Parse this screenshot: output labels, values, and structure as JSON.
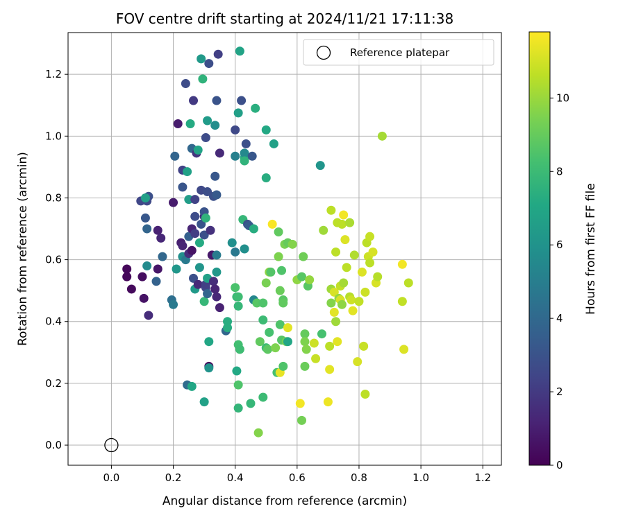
{
  "chart_data": {
    "type": "scatter",
    "title": "FOV centre drift starting at 2024/11/21 17:11:38",
    "xlabel": "Angular distance from reference (arcmin)",
    "ylabel": "Rotation from reference (arcmin)",
    "xlim": [
      -0.14,
      1.26
    ],
    "ylim": [
      -0.065,
      1.335
    ],
    "xticks": [
      0.0,
      0.2,
      0.4,
      0.6,
      0.8,
      1.0,
      1.2
    ],
    "yticks": [
      0.0,
      0.2,
      0.4,
      0.6,
      0.8,
      1.0,
      1.2
    ],
    "xtick_labels": [
      "0.0",
      "0.2",
      "0.4",
      "0.6",
      "0.8",
      "1.0",
      "1.2"
    ],
    "ytick_labels": [
      "0.0",
      "0.2",
      "0.4",
      "0.6",
      "0.8",
      "1.0",
      "1.2"
    ],
    "grid": true,
    "legend": {
      "position": "top-right",
      "entries": [
        "Reference platepar"
      ]
    },
    "reference_point": {
      "x": 0.0,
      "y": 0.0
    },
    "colorbar": {
      "label": "Hours from first FF file",
      "colormap": "viridis",
      "range": [
        0,
        11.8
      ],
      "ticks": [
        0,
        2,
        4,
        6,
        8,
        10
      ],
      "tick_labels": [
        "0",
        "2",
        "4",
        "6",
        "8",
        "10"
      ]
    },
    "points": [
      {
        "x": 0.05,
        "y": 0.57,
        "c": 0.2
      },
      {
        "x": 0.05,
        "y": 0.545,
        "c": 0.2
      },
      {
        "x": 0.065,
        "y": 0.505,
        "c": 0.3
      },
      {
        "x": 0.1,
        "y": 0.545,
        "c": 0.4
      },
      {
        "x": 0.105,
        "y": 0.475,
        "c": 0.6
      },
      {
        "x": 0.12,
        "y": 0.42,
        "c": 1.5
      },
      {
        "x": 0.15,
        "y": 0.57,
        "c": 0.7
      },
      {
        "x": 0.145,
        "y": 0.53,
        "c": 3.7
      },
      {
        "x": 0.165,
        "y": 0.61,
        "c": 3.9
      },
      {
        "x": 0.15,
        "y": 0.695,
        "c": 1.1
      },
      {
        "x": 0.16,
        "y": 0.67,
        "c": 1.3
      },
      {
        "x": 0.115,
        "y": 0.58,
        "c": 5.6
      },
      {
        "x": 0.115,
        "y": 0.7,
        "c": 3.8
      },
      {
        "x": 0.11,
        "y": 0.735,
        "c": 3.2
      },
      {
        "x": 0.095,
        "y": 0.79,
        "c": 2.5
      },
      {
        "x": 0.115,
        "y": 0.79,
        "c": 2.6
      },
      {
        "x": 0.12,
        "y": 0.805,
        "c": 2.9
      },
      {
        "x": 0.11,
        "y": 0.8,
        "c": 6.6
      },
      {
        "x": 0.2,
        "y": 0.785,
        "c": 0.9
      },
      {
        "x": 0.195,
        "y": 0.47,
        "c": 4.3
      },
      {
        "x": 0.2,
        "y": 0.455,
        "c": 4.8
      },
      {
        "x": 0.21,
        "y": 0.57,
        "c": 6.2
      },
      {
        "x": 0.205,
        "y": 0.935,
        "c": 3.8
      },
      {
        "x": 0.215,
        "y": 1.04,
        "c": 0.9
      },
      {
        "x": 0.225,
        "y": 0.655,
        "c": 1.0
      },
      {
        "x": 0.23,
        "y": 0.645,
        "c": 1.2
      },
      {
        "x": 0.23,
        "y": 0.61,
        "c": 5.8
      },
      {
        "x": 0.24,
        "y": 0.6,
        "c": 4.8
      },
      {
        "x": 0.23,
        "y": 0.835,
        "c": 3.1
      },
      {
        "x": 0.23,
        "y": 0.89,
        "c": 2.3
      },
      {
        "x": 0.24,
        "y": 1.17,
        "c": 2.7
      },
      {
        "x": 0.245,
        "y": 0.885,
        "c": 6.7
      },
      {
        "x": 0.25,
        "y": 0.795,
        "c": 6.5
      },
      {
        "x": 0.25,
        "y": 0.675,
        "c": 3.6
      },
      {
        "x": 0.25,
        "y": 0.62,
        "c": 1.6
      },
      {
        "x": 0.245,
        "y": 0.195,
        "c": 4.1
      },
      {
        "x": 0.26,
        "y": 0.19,
        "c": 7.0
      },
      {
        "x": 0.255,
        "y": 1.04,
        "c": 7.2
      },
      {
        "x": 0.26,
        "y": 0.96,
        "c": 3.9
      },
      {
        "x": 0.26,
        "y": 0.7,
        "c": 1.2
      },
      {
        "x": 0.26,
        "y": 0.63,
        "c": 0.6
      },
      {
        "x": 0.265,
        "y": 1.115,
        "c": 2.0
      },
      {
        "x": 0.27,
        "y": 0.795,
        "c": 2.3
      },
      {
        "x": 0.27,
        "y": 0.74,
        "c": 2.7
      },
      {
        "x": 0.265,
        "y": 0.54,
        "c": 2.9
      },
      {
        "x": 0.27,
        "y": 0.505,
        "c": 6.3
      },
      {
        "x": 0.27,
        "y": 0.685,
        "c": 2.1
      },
      {
        "x": 0.275,
        "y": 0.945,
        "c": 1.8
      },
      {
        "x": 0.28,
        "y": 0.955,
        "c": 6.8
      },
      {
        "x": 0.28,
        "y": 0.52,
        "c": 1.4
      },
      {
        "x": 0.285,
        "y": 0.575,
        "c": 6.1
      },
      {
        "x": 0.285,
        "y": 0.655,
        "c": 7.2
      },
      {
        "x": 0.29,
        "y": 0.715,
        "c": 3.0
      },
      {
        "x": 0.29,
        "y": 0.825,
        "c": 2.6
      },
      {
        "x": 0.29,
        "y": 1.25,
        "c": 6.3
      },
      {
        "x": 0.295,
        "y": 1.185,
        "c": 7.6
      },
      {
        "x": 0.3,
        "y": 0.68,
        "c": 2.9
      },
      {
        "x": 0.3,
        "y": 0.74,
        "c": 1.5
      },
      {
        "x": 0.3,
        "y": 0.755,
        "c": 3.0
      },
      {
        "x": 0.3,
        "y": 0.465,
        "c": 7.8
      },
      {
        "x": 0.3,
        "y": 0.14,
        "c": 6.7
      },
      {
        "x": 0.305,
        "y": 0.51,
        "c": 2.4
      },
      {
        "x": 0.305,
        "y": 0.995,
        "c": 2.7
      },
      {
        "x": 0.305,
        "y": 0.735,
        "c": 7.6
      },
      {
        "x": 0.305,
        "y": 0.52,
        "c": 2.2
      },
      {
        "x": 0.31,
        "y": 0.82,
        "c": 2.8
      },
      {
        "x": 0.31,
        "y": 0.49,
        "c": 3.8
      },
      {
        "x": 0.31,
        "y": 1.05,
        "c": 6.4
      },
      {
        "x": 0.31,
        "y": 0.54,
        "c": 6.7
      },
      {
        "x": 0.315,
        "y": 0.255,
        "c": 0.3
      },
      {
        "x": 0.315,
        "y": 0.25,
        "c": 6.0
      },
      {
        "x": 0.315,
        "y": 0.335,
        "c": 7.0
      },
      {
        "x": 0.315,
        "y": 1.235,
        "c": 2.8
      },
      {
        "x": 0.32,
        "y": 0.695,
        "c": 1.7
      },
      {
        "x": 0.325,
        "y": 0.615,
        "c": 0.8
      },
      {
        "x": 0.33,
        "y": 0.53,
        "c": 1.5
      },
      {
        "x": 0.33,
        "y": 0.805,
        "c": 2.9
      },
      {
        "x": 0.335,
        "y": 0.87,
        "c": 3.2
      },
      {
        "x": 0.335,
        "y": 1.035,
        "c": 5.7
      },
      {
        "x": 0.335,
        "y": 0.505,
        "c": 1.2
      },
      {
        "x": 0.34,
        "y": 0.48,
        "c": 1.3
      },
      {
        "x": 0.34,
        "y": 0.615,
        "c": 4.9
      },
      {
        "x": 0.34,
        "y": 0.56,
        "c": 6.2
      },
      {
        "x": 0.34,
        "y": 0.81,
        "c": 3.3
      },
      {
        "x": 0.34,
        "y": 1.115,
        "c": 3.0
      },
      {
        "x": 0.345,
        "y": 1.265,
        "c": 2.2
      },
      {
        "x": 0.35,
        "y": 0.945,
        "c": 1.4
      },
      {
        "x": 0.35,
        "y": 0.445,
        "c": 1.1
      },
      {
        "x": 0.37,
        "y": 0.37,
        "c": 3.9
      },
      {
        "x": 0.375,
        "y": 0.4,
        "c": 7.3
      },
      {
        "x": 0.375,
        "y": 0.38,
        "c": 7.3
      },
      {
        "x": 0.39,
        "y": 0.655,
        "c": 5.8
      },
      {
        "x": 0.4,
        "y": 0.935,
        "c": 5.1
      },
      {
        "x": 0.4,
        "y": 0.625,
        "c": 4.7
      },
      {
        "x": 0.4,
        "y": 1.02,
        "c": 2.6
      },
      {
        "x": 0.4,
        "y": 0.51,
        "c": 8.4
      },
      {
        "x": 0.405,
        "y": 0.48,
        "c": 7.9
      },
      {
        "x": 0.405,
        "y": 0.24,
        "c": 7.1
      },
      {
        "x": 0.41,
        "y": 0.48,
        "c": 8.1
      },
      {
        "x": 0.41,
        "y": 0.45,
        "c": 7.8
      },
      {
        "x": 0.41,
        "y": 0.325,
        "c": 8.2
      },
      {
        "x": 0.41,
        "y": 0.195,
        "c": 8.5
      },
      {
        "x": 0.41,
        "y": 0.12,
        "c": 7.7
      },
      {
        "x": 0.41,
        "y": 1.075,
        "c": 6.6
      },
      {
        "x": 0.415,
        "y": 1.275,
        "c": 6.8
      },
      {
        "x": 0.415,
        "y": 0.31,
        "c": 8.1
      },
      {
        "x": 0.42,
        "y": 1.115,
        "c": 2.9
      },
      {
        "x": 0.425,
        "y": 0.73,
        "c": 7.8
      },
      {
        "x": 0.43,
        "y": 0.635,
        "c": 5.8
      },
      {
        "x": 0.43,
        "y": 0.93,
        "c": 7.2
      },
      {
        "x": 0.43,
        "y": 0.945,
        "c": 5.5
      },
      {
        "x": 0.43,
        "y": 0.92,
        "c": 7.6
      },
      {
        "x": 0.435,
        "y": 0.975,
        "c": 2.9
      },
      {
        "x": 0.44,
        "y": 0.715,
        "c": 2.9
      },
      {
        "x": 0.445,
        "y": 0.71,
        "c": 3.3
      },
      {
        "x": 0.45,
        "y": 0.135,
        "c": 7.8
      },
      {
        "x": 0.455,
        "y": 0.935,
        "c": 3.2
      },
      {
        "x": 0.46,
        "y": 0.47,
        "c": 5.4
      },
      {
        "x": 0.46,
        "y": 0.7,
        "c": 7.3
      },
      {
        "x": 0.465,
        "y": 1.09,
        "c": 7.4
      },
      {
        "x": 0.47,
        "y": 0.46,
        "c": 8.7
      },
      {
        "x": 0.475,
        "y": 0.04,
        "c": 9.6
      },
      {
        "x": 0.48,
        "y": 0.335,
        "c": 8.9
      },
      {
        "x": 0.49,
        "y": 0.405,
        "c": 8.0
      },
      {
        "x": 0.49,
        "y": 0.46,
        "c": 8.5
      },
      {
        "x": 0.49,
        "y": 0.155,
        "c": 8.0
      },
      {
        "x": 0.5,
        "y": 1.02,
        "c": 7.1
      },
      {
        "x": 0.5,
        "y": 0.865,
        "c": 7.3
      },
      {
        "x": 0.5,
        "y": 0.525,
        "c": 9.4
      },
      {
        "x": 0.5,
        "y": 0.315,
        "c": 8.1
      },
      {
        "x": 0.505,
        "y": 0.31,
        "c": 8.8
      },
      {
        "x": 0.51,
        "y": 0.56,
        "c": 9.8
      },
      {
        "x": 0.51,
        "y": 0.365,
        "c": 8.3
      },
      {
        "x": 0.515,
        "y": 0.56,
        "c": 8.6
      },
      {
        "x": 0.52,
        "y": 0.715,
        "c": 11.7
      },
      {
        "x": 0.525,
        "y": 0.975,
        "c": 6.7
      },
      {
        "x": 0.53,
        "y": 0.315,
        "c": 9.5
      },
      {
        "x": 0.535,
        "y": 0.235,
        "c": 8.3
      },
      {
        "x": 0.545,
        "y": 0.235,
        "c": 11.4
      },
      {
        "x": 0.54,
        "y": 0.69,
        "c": 8.9
      },
      {
        "x": 0.54,
        "y": 0.61,
        "c": 9.5
      },
      {
        "x": 0.545,
        "y": 0.5,
        "c": 9.1
      },
      {
        "x": 0.545,
        "y": 0.39,
        "c": 8.5
      },
      {
        "x": 0.55,
        "y": 0.565,
        "c": 8.5
      },
      {
        "x": 0.55,
        "y": 0.34,
        "c": 8.6
      },
      {
        "x": 0.555,
        "y": 0.47,
        "c": 8.7
      },
      {
        "x": 0.555,
        "y": 0.46,
        "c": 8.9
      },
      {
        "x": 0.555,
        "y": 0.255,
        "c": 8.5
      },
      {
        "x": 0.56,
        "y": 0.65,
        "c": 9.4
      },
      {
        "x": 0.565,
        "y": 0.335,
        "c": 9.3
      },
      {
        "x": 0.57,
        "y": 0.335,
        "c": 7.0
      },
      {
        "x": 0.57,
        "y": 0.655,
        "c": 9.0
      },
      {
        "x": 0.57,
        "y": 0.38,
        "c": 11.3
      },
      {
        "x": 0.585,
        "y": 0.65,
        "c": 9.6
      },
      {
        "x": 0.6,
        "y": 0.535,
        "c": 9.8
      },
      {
        "x": 0.61,
        "y": 0.135,
        "c": 11.6
      },
      {
        "x": 0.615,
        "y": 0.08,
        "c": 9.3
      },
      {
        "x": 0.615,
        "y": 0.545,
        "c": 8.7
      },
      {
        "x": 0.62,
        "y": 0.61,
        "c": 9.2
      },
      {
        "x": 0.625,
        "y": 0.36,
        "c": 9.0
      },
      {
        "x": 0.625,
        "y": 0.335,
        "c": 9.5
      },
      {
        "x": 0.625,
        "y": 0.255,
        "c": 9.1
      },
      {
        "x": 0.63,
        "y": 0.31,
        "c": 9.6
      },
      {
        "x": 0.635,
        "y": 0.515,
        "c": 8.7
      },
      {
        "x": 0.64,
        "y": 0.535,
        "c": 9.9
      },
      {
        "x": 0.655,
        "y": 0.33,
        "c": 10.9
      },
      {
        "x": 0.66,
        "y": 0.28,
        "c": 10.8
      },
      {
        "x": 0.675,
        "y": 0.905,
        "c": 6.1
      },
      {
        "x": 0.68,
        "y": 0.36,
        "c": 8.3
      },
      {
        "x": 0.685,
        "y": 0.695,
        "c": 10.1
      },
      {
        "x": 0.7,
        "y": 0.14,
        "c": 11.5
      },
      {
        "x": 0.705,
        "y": 0.32,
        "c": 10.6
      },
      {
        "x": 0.705,
        "y": 0.245,
        "c": 11.3
      },
      {
        "x": 0.71,
        "y": 0.76,
        "c": 10.6
      },
      {
        "x": 0.71,
        "y": 0.505,
        "c": 10.1
      },
      {
        "x": 0.71,
        "y": 0.46,
        "c": 9.6
      },
      {
        "x": 0.72,
        "y": 0.495,
        "c": 11.1
      },
      {
        "x": 0.72,
        "y": 0.43,
        "c": 11.3
      },
      {
        "x": 0.725,
        "y": 0.625,
        "c": 10.6
      },
      {
        "x": 0.725,
        "y": 0.4,
        "c": 10.1
      },
      {
        "x": 0.73,
        "y": 0.72,
        "c": 10.6
      },
      {
        "x": 0.73,
        "y": 0.335,
        "c": 11.3
      },
      {
        "x": 0.735,
        "y": 0.475,
        "c": 9.9
      },
      {
        "x": 0.74,
        "y": 0.515,
        "c": 10.7
      },
      {
        "x": 0.74,
        "y": 0.47,
        "c": 11.1
      },
      {
        "x": 0.745,
        "y": 0.455,
        "c": 9.8
      },
      {
        "x": 0.745,
        "y": 0.715,
        "c": 10.6
      },
      {
        "x": 0.75,
        "y": 0.745,
        "c": 11.6
      },
      {
        "x": 0.75,
        "y": 0.525,
        "c": 10.2
      },
      {
        "x": 0.755,
        "y": 0.665,
        "c": 11.2
      },
      {
        "x": 0.76,
        "y": 0.575,
        "c": 10.6
      },
      {
        "x": 0.77,
        "y": 0.72,
        "c": 10.3
      },
      {
        "x": 0.77,
        "y": 0.48,
        "c": 10.5
      },
      {
        "x": 0.775,
        "y": 0.47,
        "c": 10.9
      },
      {
        "x": 0.78,
        "y": 0.435,
        "c": 11.3
      },
      {
        "x": 0.785,
        "y": 0.615,
        "c": 10.4
      },
      {
        "x": 0.795,
        "y": 0.27,
        "c": 11.1
      },
      {
        "x": 0.8,
        "y": 0.465,
        "c": 10.7
      },
      {
        "x": 0.81,
        "y": 0.56,
        "c": 11.2
      },
      {
        "x": 0.815,
        "y": 0.32,
        "c": 10.8
      },
      {
        "x": 0.82,
        "y": 0.495,
        "c": 10.9
      },
      {
        "x": 0.82,
        "y": 0.165,
        "c": 10.6
      },
      {
        "x": 0.825,
        "y": 0.655,
        "c": 10.6
      },
      {
        "x": 0.83,
        "y": 0.61,
        "c": 10.9
      },
      {
        "x": 0.835,
        "y": 0.675,
        "c": 10.8
      },
      {
        "x": 0.835,
        "y": 0.59,
        "c": 10.6
      },
      {
        "x": 0.845,
        "y": 0.625,
        "c": 11.1
      },
      {
        "x": 0.855,
        "y": 0.525,
        "c": 11.1
      },
      {
        "x": 0.86,
        "y": 0.545,
        "c": 10.5
      },
      {
        "x": 0.875,
        "y": 1.0,
        "c": 10.2
      },
      {
        "x": 0.94,
        "y": 0.585,
        "c": 11.6
      },
      {
        "x": 0.94,
        "y": 0.465,
        "c": 10.7
      },
      {
        "x": 0.945,
        "y": 0.31,
        "c": 11.2
      },
      {
        "x": 0.96,
        "y": 0.525,
        "c": 10.6
      }
    ]
  }
}
